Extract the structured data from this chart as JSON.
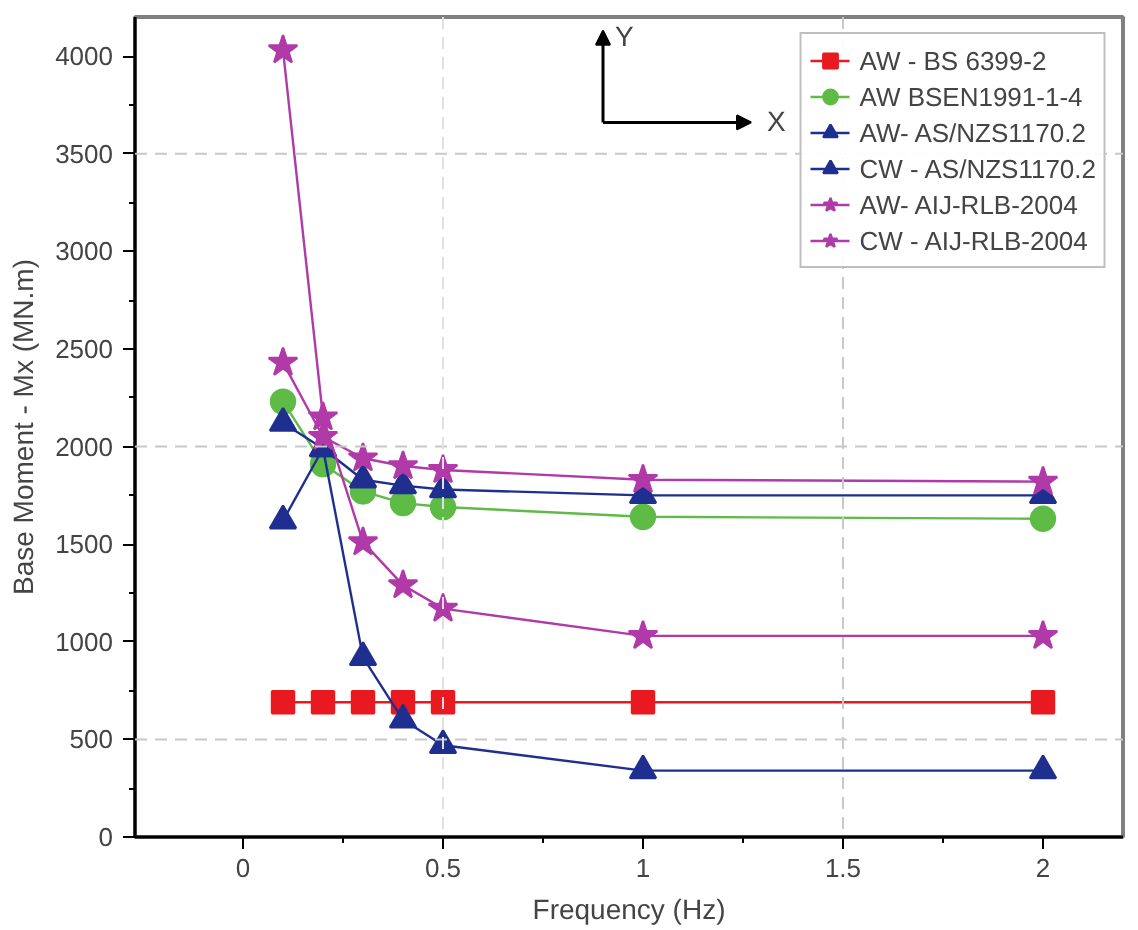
{
  "chart_data": {
    "type": "line",
    "xlabel": "Frequency (Hz)",
    "ylabel": "Base Moment - Mx (MN.m)",
    "x": [
      0.1,
      0.2,
      0.3,
      0.4,
      0.5,
      1.0,
      2.0
    ],
    "series": [
      {
        "name": "AW - BS 6399-2",
        "color": "#e8191f",
        "marker": "square",
        "values": [
          690,
          690,
          690,
          690,
          690,
          690,
          690
        ]
      },
      {
        "name": "AW BSEN1991-1-4",
        "color": "#5dbb46",
        "marker": "circle",
        "values": [
          2230,
          1910,
          1770,
          1710,
          1690,
          1640,
          1630
        ]
      },
      {
        "name": "AW- AS/NZS1170.2",
        "color": "#1f2f8f",
        "marker": "triangle",
        "values": [
          2120,
          1990,
          1830,
          1800,
          1780,
          1750,
          1750
        ]
      },
      {
        "name": "CW - AS/NZS1170.2",
        "color": "#1f2f8f",
        "marker": "triangle",
        "values": [
          1620,
          1990,
          920,
          600,
          470,
          340,
          340
        ]
      },
      {
        "name": "AW- AIJ-RLB-2004",
        "color": "#b03aa8",
        "marker": "star",
        "values": [
          2430,
          2050,
          1940,
          1900,
          1880,
          1830,
          1820
        ]
      },
      {
        "name": "CW - AIJ-RLB-2004",
        "color": "#b03aa8",
        "marker": "star",
        "values": [
          4030,
          2150,
          1510,
          1290,
          1170,
          1030,
          1030
        ]
      }
    ],
    "xlim": [
      -0.27,
      2.2
    ],
    "ylim": [
      0,
      4200
    ],
    "xticks": [
      0.0,
      0.5,
      1.0,
      1.5,
      2.0
    ],
    "yticks": [
      0,
      500,
      1000,
      1500,
      2000,
      2500,
      3000,
      3500,
      4000
    ],
    "ref_lines": [
      {
        "axis": "y",
        "value": 500,
        "color": "#c8c8c8",
        "line_style": "dashed"
      },
      {
        "axis": "y",
        "value": 2000,
        "color": "#c8c8c8",
        "line_style": "dashed"
      },
      {
        "axis": "y",
        "value": 3500,
        "color": "#c8c8c8",
        "line_style": "dashed"
      },
      {
        "axis": "x",
        "value": 0.5,
        "color": "#e0e0e0",
        "line_style": "dashed"
      },
      {
        "axis": "x",
        "value": 1.5,
        "color": "#c8c8c8",
        "line_style": "dashed"
      }
    ],
    "annotations": [
      "Y",
      "X"
    ],
    "legend": "top right",
    "line_style": "solid"
  }
}
